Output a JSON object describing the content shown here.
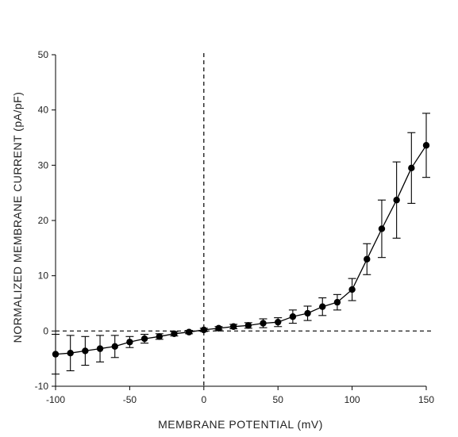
{
  "chart_data": {
    "type": "scatter",
    "title": "",
    "xlabel": "MEMBRANE POTENTIAL (mV)",
    "ylabel": "NORMALIZED MEMBRANE CURRENT (pA/pF)",
    "xlim": [
      -100,
      150
    ],
    "ylim": [
      -10,
      50
    ],
    "xticks": [
      "-100",
      "-50",
      "0",
      "50",
      "100",
      "150"
    ],
    "yticks": [
      "-10",
      "0",
      "10",
      "20",
      "30",
      "40",
      "50"
    ],
    "grid": false,
    "reference_lines": {
      "x": 0,
      "y": 0,
      "style": "dashed"
    },
    "series": [
      {
        "x": [
          -100,
          -90,
          -80,
          -70,
          -60,
          -50,
          -40,
          -30,
          -20,
          -10,
          0,
          10,
          20,
          30,
          40,
          50,
          60,
          70,
          80,
          90,
          100,
          110,
          120,
          130,
          140,
          150
        ],
        "y": [
          -4.2,
          -4.0,
          -3.6,
          -3.2,
          -2.8,
          -2.0,
          -1.4,
          -1.0,
          -0.5,
          -0.2,
          0.2,
          0.5,
          0.8,
          1.0,
          1.4,
          1.6,
          2.6,
          3.2,
          4.4,
          5.2,
          7.5,
          13.0,
          18.5,
          23.7,
          29.5,
          33.6
        ],
        "err": [
          3.6,
          3.2,
          2.6,
          2.4,
          2.0,
          1.0,
          0.8,
          0.5,
          0.4,
          0.3,
          0.3,
          0.3,
          0.4,
          0.5,
          0.8,
          0.8,
          1.2,
          1.3,
          1.6,
          1.4,
          2.0,
          2.8,
          5.2,
          6.9,
          6.4,
          5.8
        ]
      }
    ]
  }
}
